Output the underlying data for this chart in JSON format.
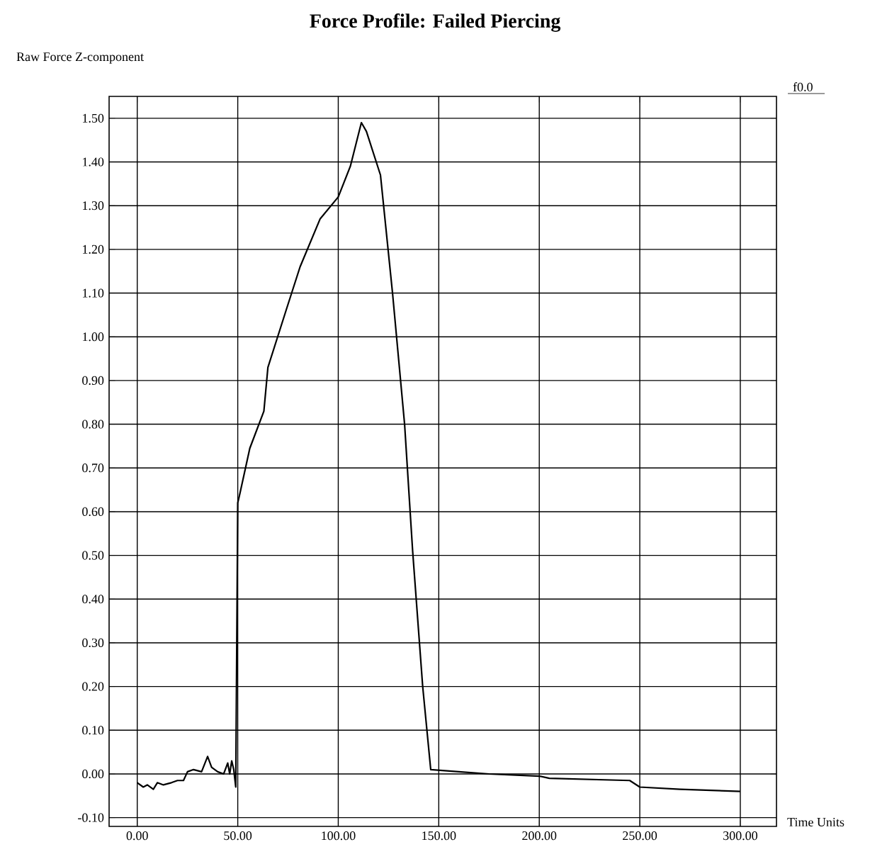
{
  "chart_data": {
    "type": "line",
    "title": "Force Profile: Failed Piercing",
    "xlabel": "Time Units",
    "ylabel": "Raw Force Z-component",
    "annotations": [
      "f0.0"
    ],
    "x": [
      0,
      3,
      5,
      8,
      10,
      13,
      17,
      20,
      23,
      25,
      28,
      32,
      35,
      37,
      40,
      43,
      45,
      46,
      47,
      48,
      49,
      50,
      51,
      56,
      63,
      65,
      74,
      81,
      91,
      100,
      106,
      111.5,
      114,
      121,
      127,
      133,
      137,
      142,
      146,
      160,
      175,
      200,
      205,
      245,
      250,
      270,
      300
    ],
    "series": [
      {
        "color": "#000000",
        "values": [
          -0.02,
          -0.03,
          -0.025,
          -0.035,
          -0.02,
          -0.025,
          -0.02,
          -0.015,
          -0.015,
          0.005,
          0.01,
          0.005,
          0.04,
          0.015,
          0.005,
          0.0,
          0.025,
          0.0,
          0.03,
          0.01,
          -0.03,
          0.62,
          0.64,
          0.745,
          0.83,
          0.93,
          1.06,
          1.16,
          1.27,
          1.32,
          1.39,
          1.49,
          1.47,
          1.37,
          1.1,
          0.8,
          0.51,
          0.2,
          0.01,
          0.005,
          0.0,
          -0.005,
          -0.01,
          -0.015,
          -0.03,
          -0.035,
          -0.04
        ]
      }
    ],
    "xlim": [
      -14,
      318
    ],
    "ylim": [
      -0.12,
      1.55
    ],
    "xticks": [
      {
        "value": 0,
        "label": "0.00"
      },
      {
        "value": 50,
        "label": "50.00"
      },
      {
        "value": 100,
        "label": "100.00"
      },
      {
        "value": 150,
        "label": "150.00"
      },
      {
        "value": 200,
        "label": "200.00"
      },
      {
        "value": 250,
        "label": "250.00"
      },
      {
        "value": 300,
        "label": "300.00"
      }
    ],
    "yticks": [
      {
        "value": -0.1,
        "label": "-0.10"
      },
      {
        "value": 0,
        "label": "0.00"
      },
      {
        "value": 0.1,
        "label": "0.10"
      },
      {
        "value": 0.2,
        "label": "0.20"
      },
      {
        "value": 0.3,
        "label": "0.30"
      },
      {
        "value": 0.4,
        "label": "0.40"
      },
      {
        "value": 0.5,
        "label": "0.50"
      },
      {
        "value": 0.6,
        "label": "0.60"
      },
      {
        "value": 0.7,
        "label": "0.70"
      },
      {
        "value": 0.8,
        "label": "0.80"
      },
      {
        "value": 0.9,
        "label": "0.90"
      },
      {
        "value": 1.0,
        "label": "1.00"
      },
      {
        "value": 1.1,
        "label": "1.10"
      },
      {
        "value": 1.2,
        "label": "1.20"
      },
      {
        "value": 1.3,
        "label": "1.30"
      },
      {
        "value": 1.4,
        "label": "1.40"
      },
      {
        "value": 1.5,
        "label": "1.50"
      }
    ],
    "grid": true,
    "marker": "none",
    "line_style": "solid"
  }
}
